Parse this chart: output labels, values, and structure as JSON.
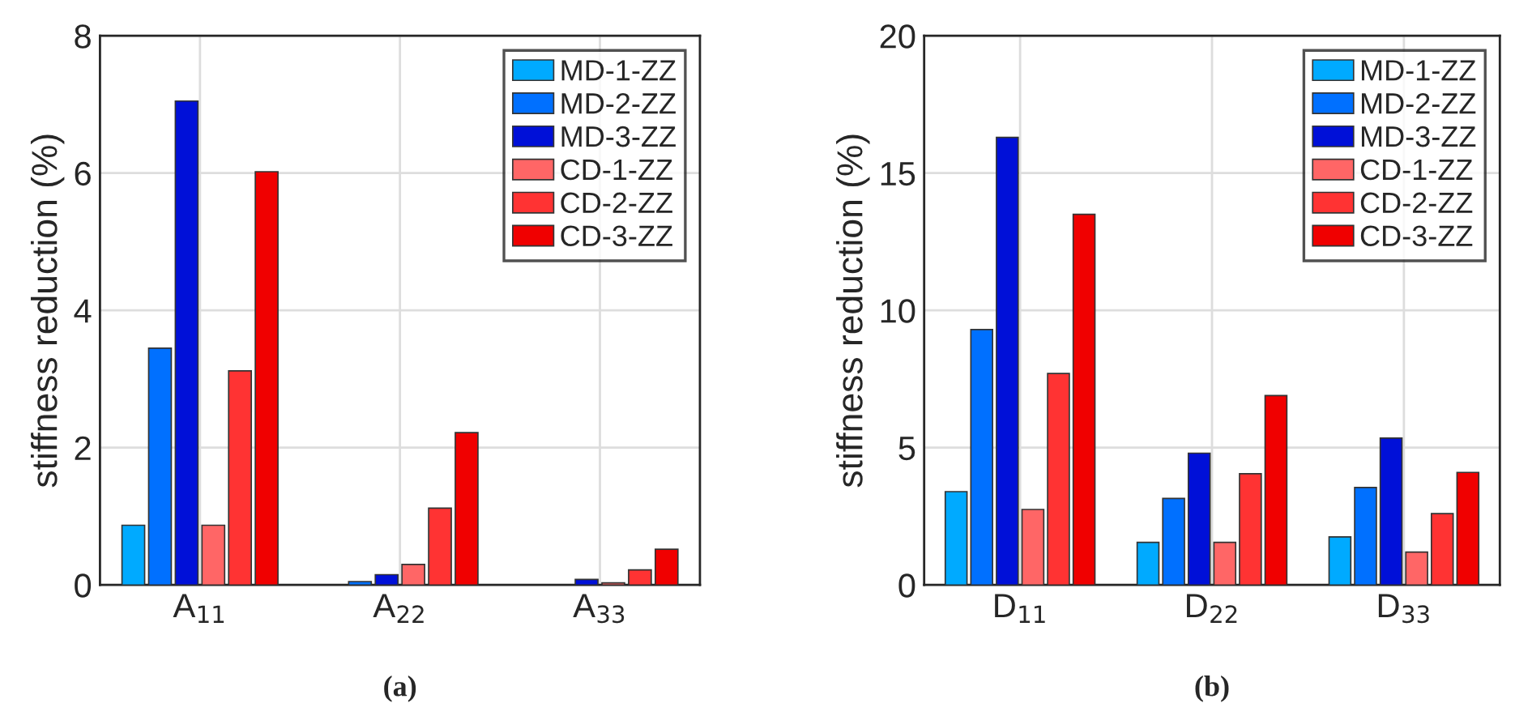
{
  "chart_data": [
    {
      "type": "bar",
      "ylabel": "stiffness reduction (%)",
      "categories": [
        "A$_{11}$",
        "A$_{22}$",
        "A$_{33}$"
      ],
      "ylim": [
        0,
        8
      ],
      "yticks": [
        0,
        2,
        4,
        6,
        8
      ],
      "grid": true,
      "legend": "top right",
      "annotations": [
        "(a)"
      ],
      "series": [
        {
          "name": "MD-1-ZZ",
          "color": "#00aaff",
          "values": [
            0.87,
            0.0,
            0.0
          ]
        },
        {
          "name": "MD-2-ZZ",
          "color": "#0070ff",
          "values": [
            3.45,
            0.05,
            null
          ]
        },
        {
          "name": "MD-3-ZZ",
          "color": "#0010d8",
          "values": [
            7.05,
            0.15,
            0.08
          ]
        },
        {
          "name": "CD-1-ZZ",
          "color": "#ff6666",
          "values": [
            0.87,
            0.3,
            0.03
          ]
        },
        {
          "name": "CD-2-ZZ",
          "color": "#ff3333",
          "values": [
            3.12,
            1.12,
            0.22
          ]
        },
        {
          "name": "CD-3-ZZ",
          "color": "#f00000",
          "values": [
            6.02,
            2.22,
            0.52
          ]
        }
      ]
    },
    {
      "type": "bar",
      "ylabel": "stiffness reduction (%)",
      "categories": [
        "D$_{11}$",
        "D$_{22}$",
        "D$_{33}$"
      ],
      "ylim": [
        0,
        20
      ],
      "yticks": [
        0,
        5,
        10,
        15,
        20
      ],
      "grid": true,
      "legend": "top right",
      "annotations": [
        "(b)"
      ],
      "series": [
        {
          "name": "MD-1-ZZ",
          "color": "#00aaff",
          "values": [
            3.4,
            1.55,
            1.75
          ]
        },
        {
          "name": "MD-2-ZZ",
          "color": "#0070ff",
          "values": [
            9.3,
            3.15,
            3.55
          ]
        },
        {
          "name": "MD-3-ZZ",
          "color": "#0010d8",
          "values": [
            16.3,
            4.8,
            5.35
          ]
        },
        {
          "name": "CD-1-ZZ",
          "color": "#ff6666",
          "values": [
            2.75,
            1.55,
            1.2
          ]
        },
        {
          "name": "CD-2-ZZ",
          "color": "#ff3333",
          "values": [
            7.7,
            4.05,
            2.6
          ]
        },
        {
          "name": "CD-3-ZZ",
          "color": "#f00000",
          "values": [
            13.5,
            6.9,
            4.1
          ]
        }
      ]
    }
  ]
}
